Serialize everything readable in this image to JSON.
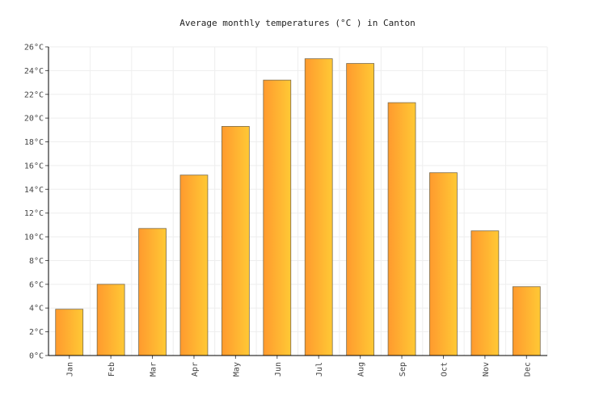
{
  "chart_data": {
    "type": "bar",
    "title": "Average monthly temperatures (°C ) in Canton",
    "xlabel": "",
    "ylabel": "",
    "categories": [
      "Jan",
      "Feb",
      "Mar",
      "Apr",
      "May",
      "Jun",
      "Jul",
      "Aug",
      "Sep",
      "Oct",
      "Nov",
      "Dec"
    ],
    "values": [
      3.9,
      6.0,
      10.7,
      15.2,
      19.3,
      23.2,
      25.0,
      24.6,
      21.3,
      15.4,
      10.5,
      5.8
    ],
    "ylim": [
      0,
      26
    ],
    "yticks": [
      0,
      2,
      4,
      6,
      8,
      10,
      12,
      14,
      16,
      18,
      20,
      22,
      24,
      26
    ],
    "ytick_suffix": "°C",
    "grid": true,
    "colors": {
      "bar_start": "#ff9a2e",
      "bar_end": "#ffc935",
      "bar_stroke": "#7a6a4a",
      "grid": "#eeeeee",
      "axis": "#000000"
    }
  }
}
